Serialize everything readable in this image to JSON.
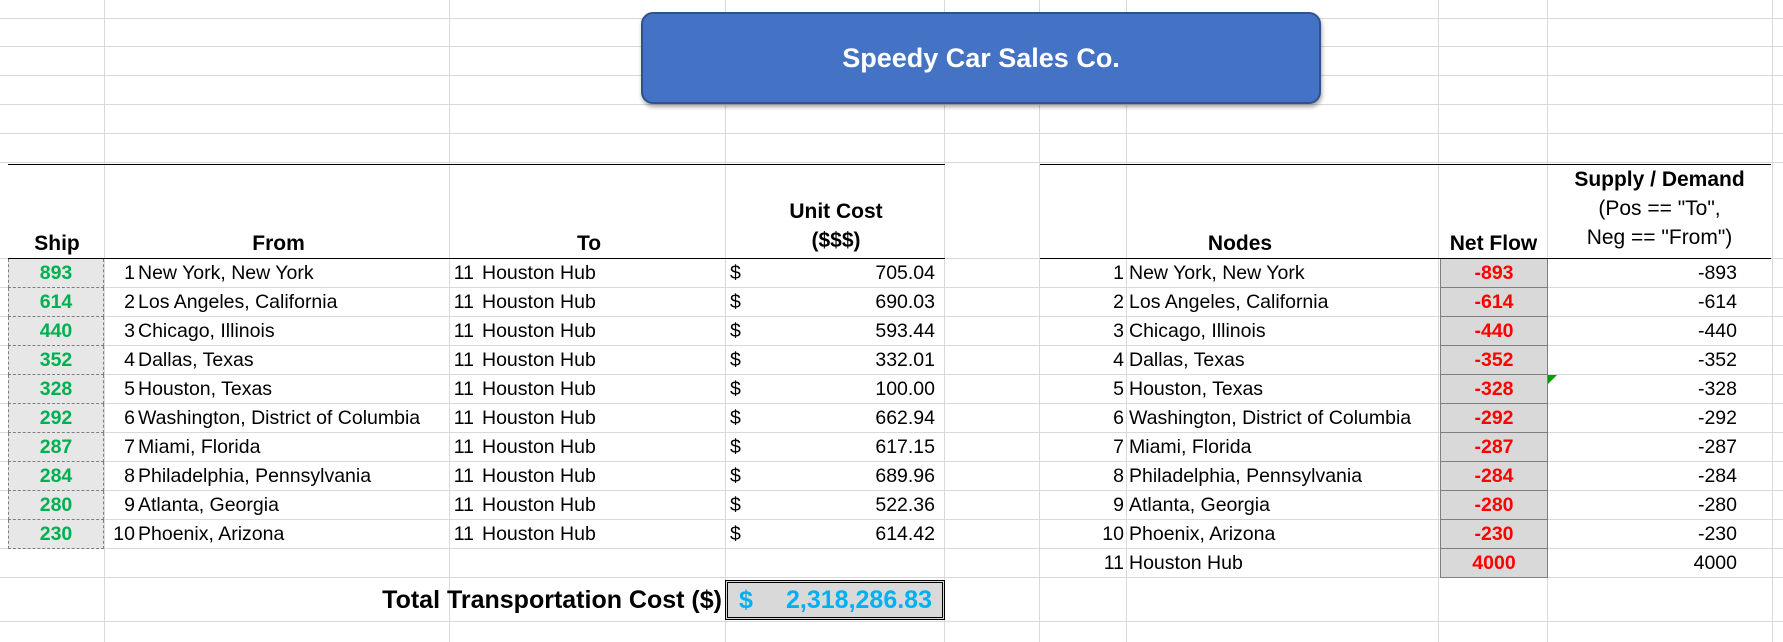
{
  "title": "Speedy Car Sales Co.",
  "headers": {
    "ship": "Ship",
    "from": "From",
    "to": "To",
    "unit_cost_line1": "Unit Cost",
    "unit_cost_line2": "($$$)",
    "nodes": "Nodes",
    "net_flow": "Net Flow",
    "supply_line1": "Supply / Demand",
    "supply_line2": "(Pos == \"To\",",
    "supply_line3": "Neg == \"From\")"
  },
  "routes": [
    {
      "ship": "893",
      "from_id": "1",
      "from": "New York, New York",
      "to_id": "11",
      "to": "Houston Hub",
      "currency": "$",
      "cost": "705.04"
    },
    {
      "ship": "614",
      "from_id": "2",
      "from": "Los Angeles, California",
      "to_id": "11",
      "to": "Houston Hub",
      "currency": "$",
      "cost": "690.03"
    },
    {
      "ship": "440",
      "from_id": "3",
      "from": "Chicago, Illinois",
      "to_id": "11",
      "to": "Houston Hub",
      "currency": "$",
      "cost": "593.44"
    },
    {
      "ship": "352",
      "from_id": "4",
      "from": "Dallas, Texas",
      "to_id": "11",
      "to": "Houston Hub",
      "currency": "$",
      "cost": "332.01"
    },
    {
      "ship": "328",
      "from_id": "5",
      "from": "Houston, Texas",
      "to_id": "11",
      "to": "Houston Hub",
      "currency": "$",
      "cost": "100.00"
    },
    {
      "ship": "292",
      "from_id": "6",
      "from": "Washington, District of Columbia",
      "to_id": "11",
      "to": "Houston Hub",
      "currency": "$",
      "cost": "662.94"
    },
    {
      "ship": "287",
      "from_id": "7",
      "from": "Miami, Florida",
      "to_id": "11",
      "to": "Houston Hub",
      "currency": "$",
      "cost": "617.15"
    },
    {
      "ship": "284",
      "from_id": "8",
      "from": "Philadelphia, Pennsylvania",
      "to_id": "11",
      "to": "Houston Hub",
      "currency": "$",
      "cost": "689.96"
    },
    {
      "ship": "280",
      "from_id": "9",
      "from": "Atlanta, Georgia",
      "to_id": "11",
      "to": "Houston Hub",
      "currency": "$",
      "cost": "522.36"
    },
    {
      "ship": "230",
      "from_id": "10",
      "from": "Phoenix, Arizona",
      "to_id": "11",
      "to": "Houston Hub",
      "currency": "$",
      "cost": "614.42"
    }
  ],
  "nodes": [
    {
      "id": "1",
      "name": "New York, New York",
      "net_flow": "-893",
      "supply": "-893"
    },
    {
      "id": "2",
      "name": "Los Angeles, California",
      "net_flow": "-614",
      "supply": "-614"
    },
    {
      "id": "3",
      "name": "Chicago, Illinois",
      "net_flow": "-440",
      "supply": "-440"
    },
    {
      "id": "4",
      "name": "Dallas, Texas",
      "net_flow": "-352",
      "supply": "-352"
    },
    {
      "id": "5",
      "name": "Houston, Texas",
      "net_flow": "-328",
      "supply": "-328"
    },
    {
      "id": "6",
      "name": "Washington, District of Columbia",
      "net_flow": "-292",
      "supply": "-292"
    },
    {
      "id": "7",
      "name": "Miami, Florida",
      "net_flow": "-287",
      "supply": "-287"
    },
    {
      "id": "8",
      "name": "Philadelphia, Pennsylvania",
      "net_flow": "-284",
      "supply": "-284"
    },
    {
      "id": "9",
      "name": "Atlanta, Georgia",
      "net_flow": "-280",
      "supply": "-280"
    },
    {
      "id": "10",
      "name": "Phoenix, Arizona",
      "net_flow": "-230",
      "supply": "-230"
    },
    {
      "id": "11",
      "name": "Houston Hub",
      "net_flow": "4000",
      "supply": "4000"
    }
  ],
  "total": {
    "label": "Total Transportation Cost ($)",
    "currency": "$",
    "value": "2,318,286.83"
  },
  "colors": {
    "banner": "#4472c4",
    "ship_text": "#00b050",
    "net_flow_text": "#ff0000",
    "total_text": "#00b0f0"
  }
}
